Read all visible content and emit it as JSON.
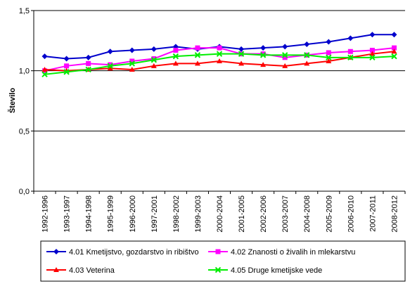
{
  "chart_data": {
    "type": "line",
    "ylabel": "Število",
    "ylim": [
      0,
      1.5
    ],
    "yticks": [
      "0,0",
      "0,5",
      "1,0",
      "1,5"
    ],
    "ytick_values": [
      0,
      0.5,
      1.0,
      1.5
    ],
    "grid": "horizontal",
    "legend_placement": "bottom",
    "categories": [
      "1992-1996",
      "1993-1997",
      "1994-1998",
      "1995-1999",
      "1996-2000",
      "1997-2001",
      "1998-2002",
      "1999-2003",
      "2000-2004",
      "2001-2005",
      "2002-2006",
      "2003-2007",
      "2004-2008",
      "2005-2009",
      "2006-2010",
      "2007-2011",
      "2008-2012"
    ],
    "series": [
      {
        "name": "4.01 Kmetijstvo, gozdarstvo in ribištvo",
        "color": "#0000cc",
        "marker": "diamond",
        "values": [
          1.12,
          1.1,
          1.11,
          1.16,
          1.17,
          1.18,
          1.2,
          1.18,
          1.2,
          1.18,
          1.19,
          1.2,
          1.22,
          1.24,
          1.27,
          1.3,
          1.3
        ]
      },
      {
        "name": "4.02 Znanosti o živalih in mlekarstvu",
        "color": "#ff00ff",
        "marker": "square",
        "values": [
          1.0,
          1.04,
          1.06,
          1.05,
          1.08,
          1.1,
          1.17,
          1.19,
          1.19,
          1.14,
          1.14,
          1.11,
          1.13,
          1.15,
          1.16,
          1.17,
          1.19
        ]
      },
      {
        "name": "4.03 Veterina",
        "color": "#ff0000",
        "marker": "triangle",
        "values": [
          1.01,
          1.0,
          1.01,
          1.02,
          1.01,
          1.04,
          1.06,
          1.06,
          1.08,
          1.06,
          1.05,
          1.04,
          1.06,
          1.08,
          1.11,
          1.14,
          1.16
        ]
      },
      {
        "name": "4.05 Druge kmetijske vede",
        "color": "#00ee00",
        "marker": "x",
        "values": [
          0.97,
          0.99,
          1.01,
          1.04,
          1.06,
          1.09,
          1.12,
          1.13,
          1.14,
          1.14,
          1.13,
          1.13,
          1.13,
          1.11,
          1.11,
          1.11,
          1.12
        ]
      }
    ]
  }
}
